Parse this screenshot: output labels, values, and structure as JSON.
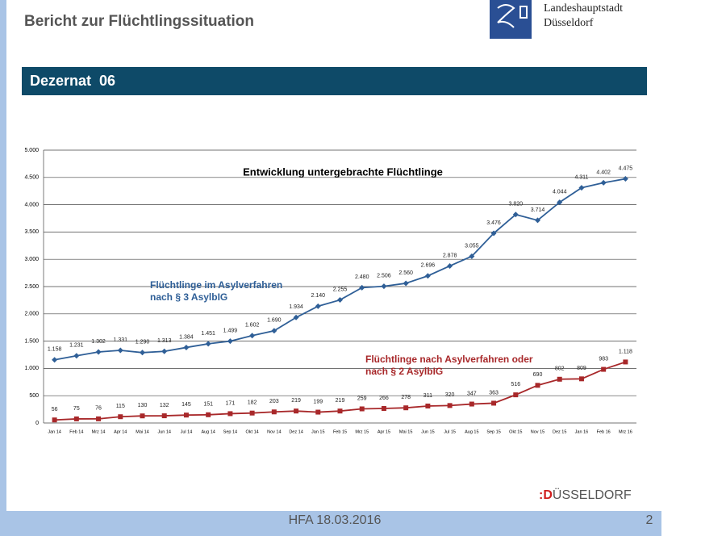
{
  "header": {
    "title": "Bericht zur Flüchtlingssituation",
    "logo_line1": "Landeshauptstadt",
    "logo_line2": "Düsseldorf",
    "section": "Dezernat  06"
  },
  "footer": {
    "text": "HFA 18.03.2016",
    "page": "2",
    "brand_mark": ":D",
    "brand_rest": "ÜSSELDORF"
  },
  "chart_data": {
    "type": "line",
    "title": "Entwicklung untergebrachte Flüchtlinge",
    "categories": [
      "Jan 14",
      "Feb 14",
      "Mrz 14",
      "Apr 14",
      "Mai 14",
      "Jun 14",
      "Jul 14",
      "Aug 14",
      "Sep 14",
      "Okt 14",
      "Nov 14",
      "Dez 14",
      "Jan 15",
      "Feb 15",
      "Mrz 15",
      "Apr 15",
      "Mai 15",
      "Jun 15",
      "Jul 15",
      "Aug 15",
      "Sep 15",
      "Okt 15",
      "Nov 15",
      "Dez 15",
      "Jan 16",
      "Feb 16",
      "Mrz 16"
    ],
    "series": [
      {
        "name": "Flüchtlinge im Asylverfahren nach § 3 AsylbIG",
        "color": "#2f5f97",
        "marker": "diamond",
        "values": [
          1158,
          1231,
          1302,
          1331,
          1290,
          1313,
          1384,
          1451,
          1499,
          1602,
          1690,
          1934,
          2140,
          2255,
          2480,
          2506,
          2560,
          2696,
          2878,
          3055,
          3476,
          3820,
          3714,
          4044,
          4311,
          4402,
          4475
        ],
        "value_labels": [
          "1.158",
          "1.231",
          "1.302",
          "1.331",
          "1.290",
          "1.313",
          "1.384",
          "1.451",
          "1.499",
          "1.602",
          "1.690",
          "1.934",
          "2.140",
          "2.255",
          "2.480",
          "2.506",
          "2.560",
          "2.696",
          "2.878",
          "3.055",
          "3.476",
          "3.820",
          "3.714",
          "4.044",
          "4.311",
          "4.402",
          "4.475"
        ]
      },
      {
        "name": "Flüchtlinge nach Asylverfahren oder nach § 2 AsylbIG",
        "color": "#a8282a",
        "marker": "square",
        "values": [
          56,
          75,
          76,
          115,
          130,
          132,
          145,
          151,
          171,
          182,
          203,
          219,
          199,
          219,
          259,
          266,
          278,
          311,
          320,
          347,
          363,
          516,
          690,
          802,
          809,
          983,
          1118
        ],
        "value_labels": [
          "56",
          "75",
          "76",
          "115",
          "130",
          "132",
          "145",
          "151",
          "171",
          "182",
          "203",
          "219",
          "199",
          "219",
          "259",
          "266",
          "278",
          "311",
          "320",
          "347",
          "363",
          "516",
          "690",
          "802",
          "809",
          "983",
          "1.118"
        ]
      }
    ],
    "ylim": [
      0,
      5000
    ],
    "yticks": [
      0,
      {
        "value": 500,
        "label": "500"
      },
      {
        "value": 1000,
        "label": "1.000"
      },
      {
        "value": 1500,
        "label": "1.500"
      },
      {
        "value": 2000,
        "label": "2.000"
      },
      {
        "value": 2500,
        "label": "2.500"
      },
      {
        "value": 3000,
        "label": "3.000"
      },
      {
        "value": 3500,
        "label": "3.500"
      },
      {
        "value": 4000,
        "label": "4.000"
      },
      {
        "value": 4500,
        "label": "4.500"
      },
      {
        "value": 5000,
        "label": "5.000"
      }
    ],
    "grid": true
  }
}
